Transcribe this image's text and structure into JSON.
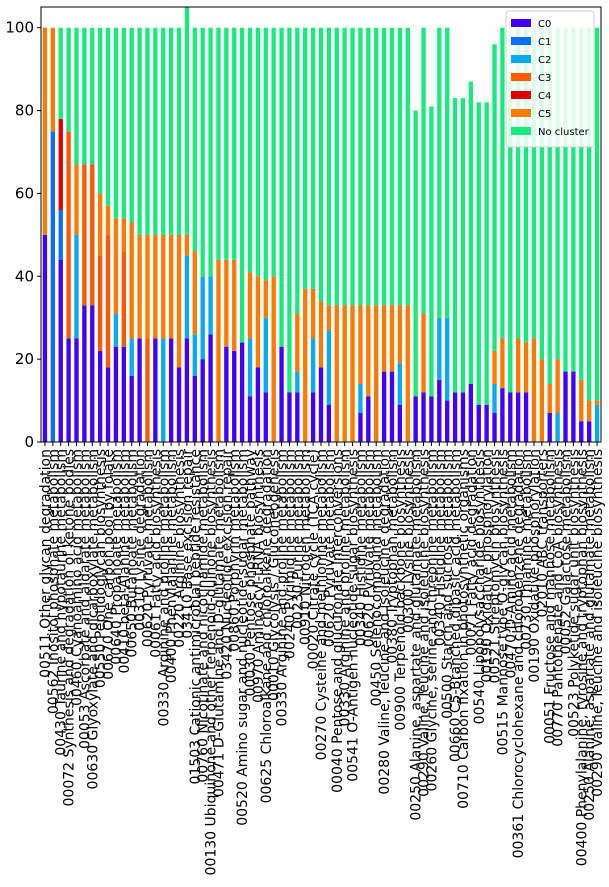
{
  "chart_data": {
    "type": "bar",
    "stacked": true,
    "title": "",
    "xlabel": "",
    "ylabel": "",
    "ylim": [
      0,
      105
    ],
    "yticks": [
      0,
      20,
      40,
      60,
      80,
      100
    ],
    "grid": false,
    "legend_position": "top-right",
    "categories": [
      "00511 Other glycan degradation",
      "00562 Inositol phosphate metabolism",
      "00430 Taurine and hypotaurine metabolism",
      "00072 Synthesis and degradation of ketone bodies",
      "00460 Cyanoamino acid metabolism",
      "00053 Ascorbate and aldarate metabolism",
      "00630 Glyoxylate and dicarboxylate metabolism",
      "00550 Peptidoglycan biosynthesis",
      "00670 One carbon pool by folate",
      "00640 Propanoate metabolism",
      "00410 beta-Alanine metabolism",
      "00650 Butanoate metabolism",
      "00310 Lysine degradation",
      "00620 Pyruvate metabolism",
      "00061 Fatty acid biosynthesis",
      "00330 Arginine and proline metabolism",
      "00400 Phenylalanine metabolism",
      "00220 Arginine biosynthesis",
      "03410 Base excision repair",
      "01503 Cationic antimicrobial peptide resistance",
      "00760 Nicotinate and nicotinamide metabolism",
      "00130 Ubiquinone and other terpenoid-quinone biosynthesis",
      "00471 D-Glutamine and D-glutamate metabolism",
      "03420 Nucleotide excision repair",
      "00860 Porphyrin metabolism",
      "00520 Amino sugar and nucleotide sugar metabolism",
      "00030 Pentose phosphate pathway",
      "00970 Aminoacyl-tRNA biosynthesis",
      "00625 Chloroalkane and chloroalkene degradation",
      "00010 Glycolysis / Gluconeogenesis",
      "00330 Arginine and proline metabolism",
      "00240 Pyrimidine metabolism",
      "00230 Purine metabolism",
      "00910 Nitrogen metabolism",
      "00020 Citrate cycle (TCA cycle)",
      "00270 Cysteine and methionine metabolism",
      "00620 Pyruvate metabolism",
      "00040 Pentose and glucuronate interconversions",
      "00330 Arginine and proline metabolism",
      "00541 O-Antigen nucleotide sugar biosynthesis",
      "00340 Histidine metabolism",
      "00620 Pyruvate metabolism",
      "00450 Selenocompound metabolism",
      "00280 Valine, leucine and isoleucine degradation",
      "00380 Tryptophan metabolism",
      "00900 Terpenoid backbone biosynthesis",
      "00300 Lysine biosynthesis",
      "00250 Alanine, aspartate and glutamate metabolism",
      "00290 Valine, leucine and isoleucine biosynthesis",
      "00260 Glycine, serine and threonine metabolism",
      "00340 Histidine metabolism",
      "00500 Starch and sucrose metabolism",
      "00660 C5-Branched dibasic acid metabolism",
      "00710 Carbon fixation in photosynthetic organisms",
      "00071 Fatty acid degradation",
      "00540 Lipopolysaccharide biosynthesis",
      "00190 Oxidative phosphorylation",
      "00521 Streptomycin biosynthesis",
      "00515 Mannose type O-glycan biosynthesis",
      "00470 D-Amino acid metabolism",
      "00361 Chlorocyclohexane and chlorobenzene degradation",
      "00730 Thiamine metabolism",
      "00190 Oxidative phosphorylation",
      "02010 ABC transporters",
      "00051 Fructose and mannose metabolism",
      "00770 Pantothenate and CoA biosynthesis",
      "00052 Galactose metabolism",
      "00523 Polyketide sugar unit biosynthesis",
      "00400 Phenylalanine, tyrosine and tryptophan biosynthesis",
      "00250 Alanine, aspartate and glutamate metabolism",
      "00290 Valine, leucine and isoleucine biosynthesis"
    ],
    "series": [
      {
        "name": "C0",
        "values": [
          50,
          0,
          44,
          25,
          25,
          33,
          33,
          22,
          18,
          23,
          23,
          16,
          25,
          0,
          25,
          0,
          25,
          18,
          25,
          16,
          20,
          26,
          0,
          23,
          22,
          24,
          11,
          18,
          12,
          0,
          23,
          12,
          12,
          0,
          12,
          18,
          9,
          0,
          0,
          0,
          7,
          11,
          0,
          17,
          17,
          9,
          0,
          11,
          12,
          11,
          15,
          10,
          12,
          12,
          14,
          9,
          9,
          7,
          13,
          12,
          12,
          12,
          0,
          0,
          7,
          0,
          17,
          17,
          5,
          5,
          0
        ]
      },
      {
        "name": "C1",
        "values": [
          0,
          75,
          12,
          0,
          0,
          0,
          0,
          0,
          0,
          0,
          0,
          0,
          0,
          0,
          0,
          0,
          0,
          0,
          0,
          0,
          0,
          0,
          0,
          0,
          0,
          0,
          0,
          0,
          0,
          0,
          0,
          0,
          0,
          0,
          0,
          0,
          0,
          0,
          0,
          0,
          0,
          0,
          0,
          0,
          0,
          0,
          0,
          0,
          0,
          0,
          0,
          0,
          0,
          0,
          0,
          0,
          0,
          0,
          0,
          0,
          0,
          0,
          0,
          0,
          0,
          0,
          0,
          0,
          0,
          0,
          0
        ]
      },
      {
        "name": "C2",
        "values": [
          0,
          0,
          0,
          0,
          25,
          0,
          0,
          0,
          0,
          8,
          0,
          9,
          0,
          0,
          0,
          25,
          0,
          0,
          20,
          10,
          20,
          14,
          0,
          0,
          0,
          0,
          14,
          0,
          18,
          0,
          0,
          0,
          5,
          0,
          13,
          0,
          18,
          0,
          0,
          0,
          7,
          0,
          0,
          0,
          0,
          10,
          0,
          0,
          0,
          0,
          15,
          20,
          0,
          0,
          0,
          0,
          0,
          7,
          0,
          0,
          0,
          0,
          0,
          0,
          0,
          7,
          0,
          0,
          0,
          0,
          9
        ]
      },
      {
        "name": "C3",
        "values": [
          0,
          0,
          0,
          50,
          0,
          34,
          34,
          23,
          32,
          0,
          23,
          0,
          0,
          25,
          0,
          0,
          0,
          0,
          0,
          0,
          0,
          0,
          0,
          0,
          0,
          0,
          0,
          0,
          0,
          0,
          0,
          0,
          0,
          0,
          0,
          0,
          0,
          0,
          0,
          0,
          0,
          0,
          0,
          0,
          0,
          0,
          0,
          0,
          0,
          0,
          0,
          0,
          0,
          0,
          0,
          0,
          0,
          0,
          0,
          0,
          0,
          0,
          0,
          0,
          0,
          0,
          0,
          0,
          0,
          0,
          0
        ]
      },
      {
        "name": "C4",
        "values": [
          0,
          0,
          22,
          0,
          0,
          0,
          0,
          0,
          0,
          0,
          0,
          0,
          0,
          0,
          0,
          0,
          0,
          0,
          0,
          0,
          0,
          0,
          0,
          0,
          0,
          0,
          0,
          0,
          0,
          0,
          0,
          0,
          0,
          0,
          0,
          0,
          0,
          0,
          0,
          0,
          0,
          0,
          0,
          0,
          0,
          0,
          0,
          0,
          0,
          0,
          0,
          0,
          0,
          0,
          0,
          0,
          0,
          0,
          0,
          0,
          0,
          0,
          0,
          0,
          0,
          0,
          0,
          0,
          0,
          0,
          0
        ]
      },
      {
        "name": "C5",
        "values": [
          50,
          25,
          0,
          0,
          17,
          0,
          0,
          15,
          7,
          23,
          8,
          28,
          25,
          25,
          25,
          25,
          25,
          32,
          5,
          20,
          0,
          0,
          44,
          21,
          22,
          0,
          16,
          22,
          9,
          40,
          0,
          0,
          14,
          37,
          12,
          16,
          6,
          33,
          33,
          33,
          19,
          22,
          33,
          16,
          16,
          14,
          33,
          0,
          19,
          0,
          0,
          0,
          0,
          0,
          0,
          0,
          0,
          8,
          12,
          0,
          13,
          12,
          25,
          20,
          7,
          13,
          0,
          0,
          10,
          5,
          1
        ]
      },
      {
        "name": "No cluster",
        "values": [
          0,
          0,
          22,
          25,
          33,
          33,
          33,
          40,
          43,
          46,
          46,
          47,
          50,
          50,
          50,
          50,
          50,
          50,
          55,
          54,
          60,
          60,
          56,
          56,
          56,
          76,
          59,
          60,
          61,
          60,
          77,
          88,
          69,
          63,
          63,
          66,
          67,
          67,
          67,
          67,
          67,
          67,
          67,
          67,
          67,
          67,
          67,
          69,
          69,
          70,
          70,
          70,
          71,
          71,
          73,
          73,
          73,
          74,
          75,
          75,
          75,
          76,
          75,
          80,
          86,
          80,
          83,
          83,
          85,
          90,
          90
        ]
      }
    ],
    "colors": {
      "C0": "#3f00ff",
      "C1": "#0a6eff",
      "C2": "#0aaaf0",
      "C3": "#ff5a00",
      "C4": "#e00000",
      "C5": "#ff7a00",
      "No cluster": "#1aea7e"
    }
  }
}
